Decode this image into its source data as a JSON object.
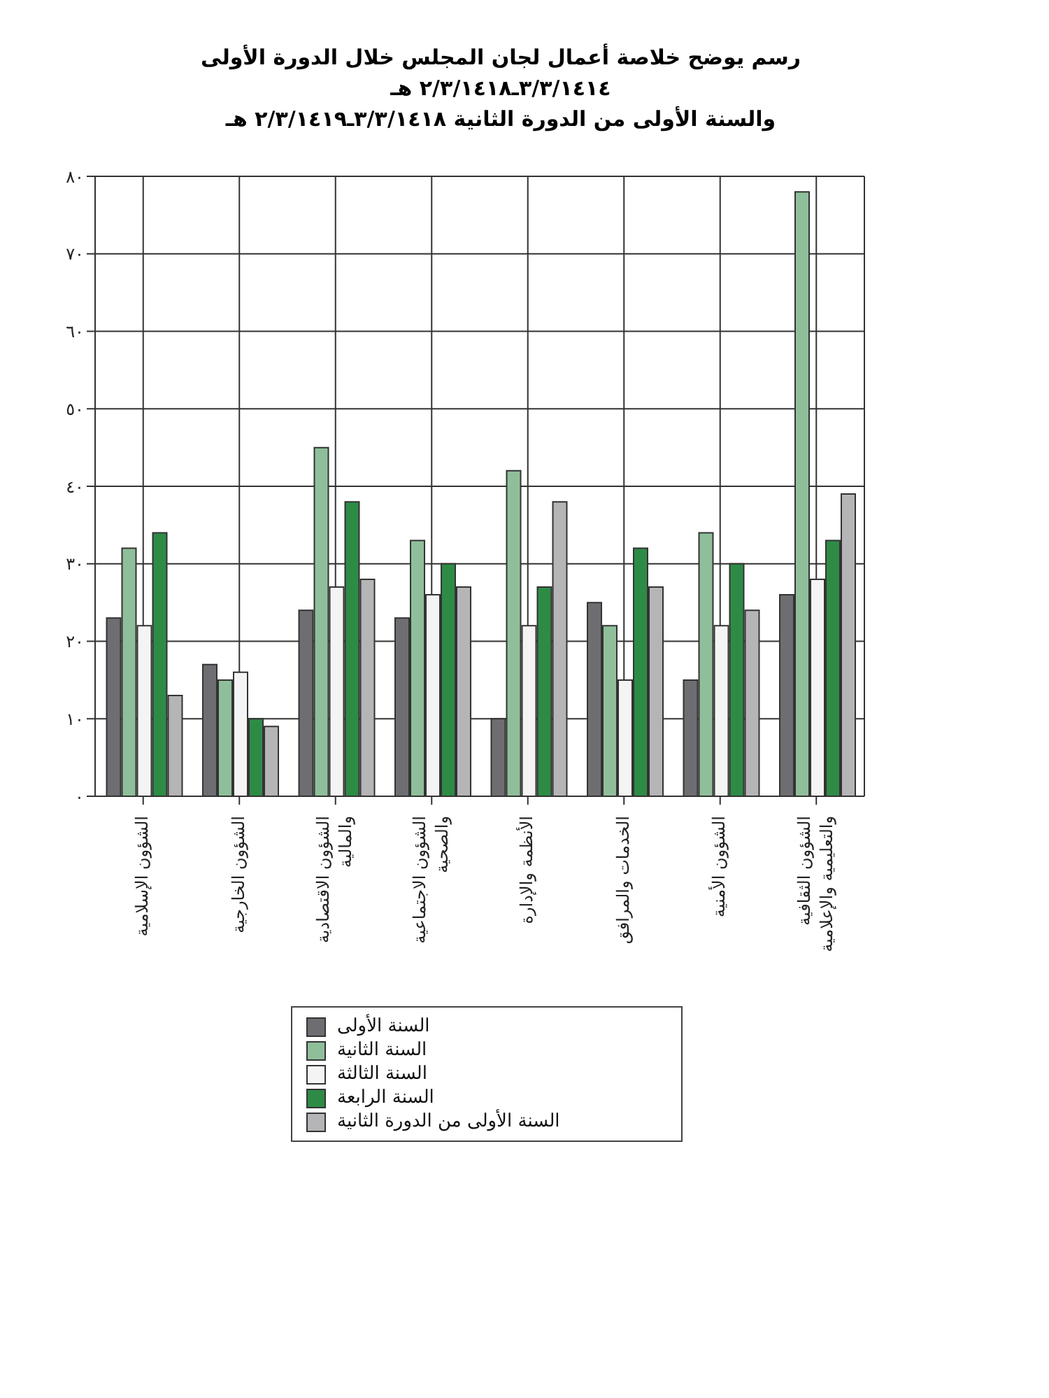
{
  "chart_data": {
    "type": "bar",
    "title": "رسم يوضح خلاصة أعمال لجان المجلس خلال الدورة الأولى ٣/٣/١٤١٤ـ٢/٣/١٤١٨ هـ",
    "subtitle": "والسنة الأولى من الدورة الثانية ٣/٣/١٤١٨ـ٢/٣/١٤١٩ هـ",
    "categories": [
      "الشؤون الإسلامية",
      "الشؤون الخارجية",
      "الشؤون الاقتصادية والمالية",
      "الشؤون الاجتماعية والصحية",
      "الأنظمة والإدارة",
      "الخدمات والمرافق",
      "الشؤون الأمنية",
      "الشؤون الثقافية والتعليمية والإعلامية"
    ],
    "series": [
      {
        "name": "السنة الأولى",
        "color": "#6e6e72",
        "values": [
          23,
          17,
          24,
          23,
          10,
          25,
          15,
          26
        ]
      },
      {
        "name": "السنة الثانية",
        "color": "#8fbf9a",
        "values": [
          32,
          15,
          45,
          33,
          42,
          22,
          34,
          78
        ]
      },
      {
        "name": "السنة الثالثة",
        "color": "#f4f4f4",
        "values": [
          22,
          16,
          27,
          26,
          22,
          15,
          22,
          28
        ]
      },
      {
        "name": "السنة الرابعة",
        "color": "#2e8b46",
        "values": [
          34,
          10,
          38,
          30,
          27,
          32,
          30,
          33
        ]
      },
      {
        "name": "السنة الأولى من الدورة الثانية",
        "color": "#b5b5b8",
        "values": [
          13,
          9,
          28,
          27,
          38,
          27,
          24,
          39
        ]
      }
    ],
    "ylim": [
      0,
      80
    ],
    "yticks": [
      {
        "value": 0,
        "label": "٠"
      },
      {
        "value": 10,
        "label": "١٠"
      },
      {
        "value": 20,
        "label": "٢٠"
      },
      {
        "value": 30,
        "label": "٣٠"
      },
      {
        "value": 40,
        "label": "٤٠"
      },
      {
        "value": 50,
        "label": "٥٠"
      },
      {
        "value": 60,
        "label": "٦٠"
      },
      {
        "value": 70,
        "label": "٧٠"
      },
      {
        "value": 80,
        "label": "٨٠"
      }
    ],
    "grid": true,
    "legend": "bottom"
  }
}
